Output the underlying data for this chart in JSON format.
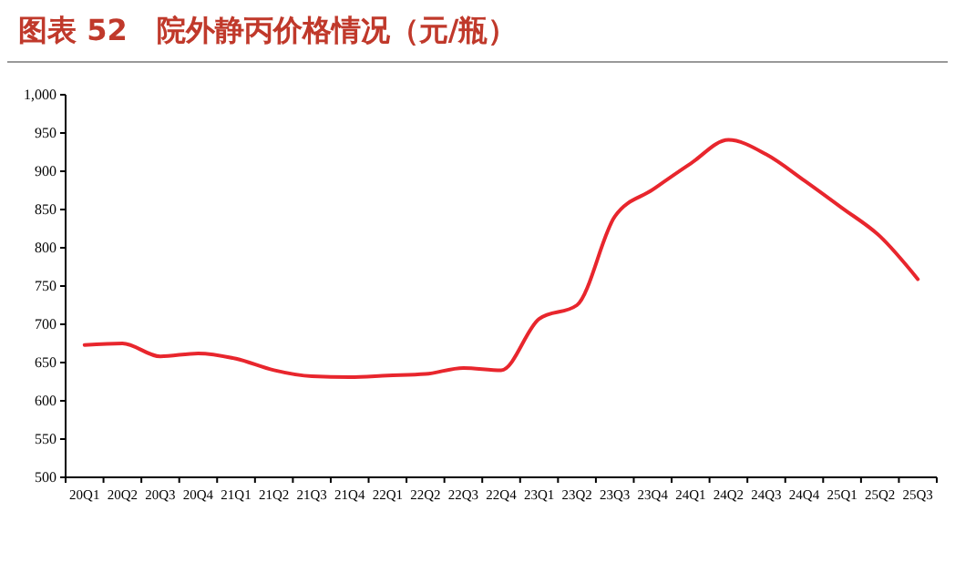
{
  "chart_data": {
    "type": "line",
    "title": "图表 52　院外静丙价格情况（元/瓶）",
    "categories": [
      "20Q1",
      "20Q2",
      "20Q3",
      "20Q4",
      "21Q1",
      "21Q2",
      "21Q3",
      "21Q4",
      "22Q1",
      "22Q2",
      "22Q3",
      "22Q4",
      "23Q1",
      "23Q2",
      "23Q3",
      "23Q4",
      "24Q1",
      "24Q2",
      "24Q3",
      "24Q4",
      "25Q1",
      "25Q2",
      "25Q3"
    ],
    "series": [
      {
        "color": "#e8262d",
        "values": [
          673,
          675,
          658,
          662,
          655,
          640,
          632,
          631,
          633,
          635,
          643,
          640,
          707,
          725,
          841,
          876,
          910,
          941,
          922,
          888,
          852,
          815,
          759
        ]
      }
    ],
    "ylim": [
      500,
      1000
    ],
    "yticks": [
      500,
      550,
      600,
      650,
      700,
      750,
      800,
      850,
      900,
      950,
      {
        "value": 1000,
        "label": "1,000"
      }
    ],
    "grid": false,
    "marker": "none",
    "line_style": "solid"
  }
}
